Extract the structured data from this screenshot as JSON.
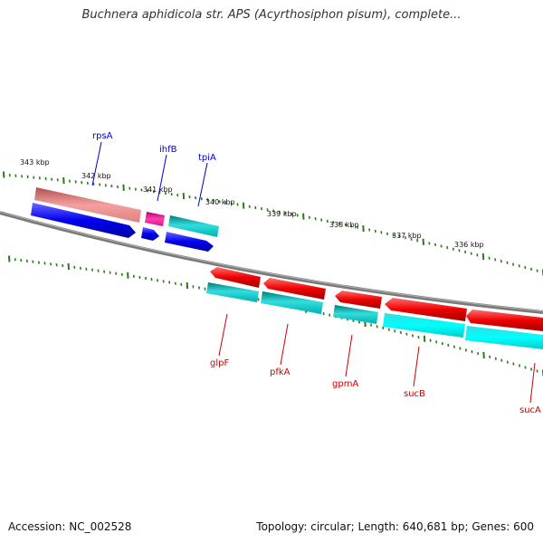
{
  "title": "Buchnera aphidicola str. APS (Acyrthosiphon pisum), complete...",
  "footer": {
    "accession": "Accession: NC_002528",
    "stats": "Topology: circular; Length: 640,681 bp; Genes: 600"
  },
  "ruler": {
    "labels": [
      "343 kbp",
      "342 kbp",
      "341 kbp",
      "340 kbp",
      "339 kbp",
      "338 kbp",
      "337 kbp",
      "336 kbp"
    ]
  },
  "colors": {
    "forward_gene": "#0000ee",
    "reverse_gene": "#ee0000",
    "cds_cyan": "#00bbbb",
    "rrna_pink": "#ff1493",
    "rrna_salmon": "#e87878",
    "backbone": "#808080",
    "ticks": "#2a7a1a"
  },
  "genes_top": [
    {
      "name": "rpsA",
      "strand": "forward"
    },
    {
      "name": "ihfB",
      "strand": "forward"
    },
    {
      "name": "tpiA",
      "strand": "forward"
    }
  ],
  "genes_bottom": [
    {
      "name": "glpF",
      "strand": "reverse"
    },
    {
      "name": "pfkA",
      "strand": "reverse"
    },
    {
      "name": "gpmA",
      "strand": "reverse"
    },
    {
      "name": "sucB",
      "strand": "reverse"
    },
    {
      "name": "sucA",
      "strand": "reverse"
    }
  ]
}
